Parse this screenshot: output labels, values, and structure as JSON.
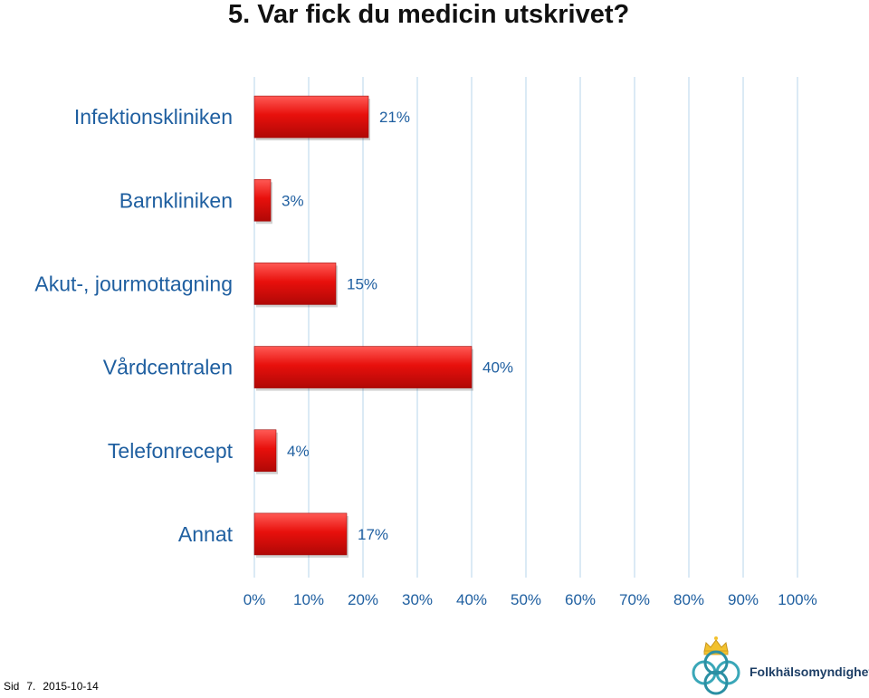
{
  "header": {
    "title": "5. Var fick du medicin utskrivet?"
  },
  "chart_data": {
    "type": "bar",
    "orientation": "horizontal",
    "title": "5. Var fick du medicin utskrivet?",
    "categories": [
      "Infektionskliniken",
      "Barnkliniken",
      "Akut-, jourmottagning",
      "Vårdcentralen",
      "Telefonrecept",
      "Annat"
    ],
    "values": [
      21,
      3,
      15,
      40,
      4,
      17
    ],
    "value_labels": [
      "21%",
      "3%",
      "15%",
      "40%",
      "4%",
      "17%"
    ],
    "xlim": [
      0,
      100
    ],
    "x_ticks": [
      "0%",
      "10%",
      "20%",
      "30%",
      "40%",
      "50%",
      "60%",
      "70%",
      "80%",
      "90%",
      "100%"
    ],
    "grid": "vertical",
    "bar_color": "#e8100c",
    "xlabel": "",
    "ylabel": ""
  },
  "footer": {
    "page_label": "Sid",
    "page_number": "7.",
    "date": "2015-10-14"
  },
  "logo": {
    "name": "Folkhälsomyndigheten",
    "icon": "crown-knot-logo-icon"
  }
}
